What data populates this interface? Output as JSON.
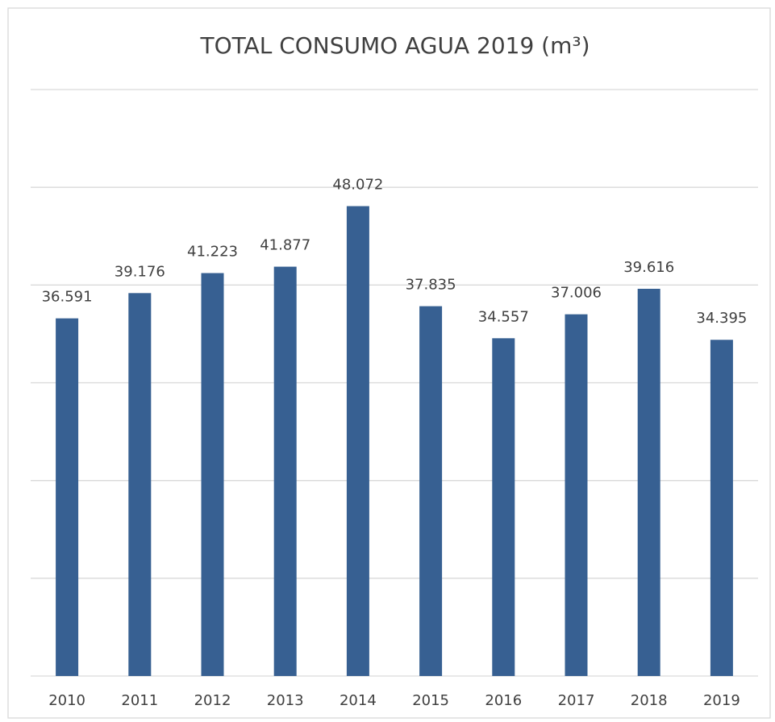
{
  "chart_data": {
    "type": "bar",
    "title": "TOTAL CONSUMO AGUA 2019 (m³)",
    "categories": [
      "2010",
      "2011",
      "2012",
      "2013",
      "2014",
      "2015",
      "2016",
      "2017",
      "2018",
      "2019"
    ],
    "values": [
      36591,
      39176,
      41223,
      41877,
      48072,
      37835,
      34557,
      37006,
      39616,
      34395
    ],
    "value_labels": [
      "36.591",
      "39.176",
      "41.223",
      "41.877",
      "48.072",
      "37.835",
      "34.557",
      "37.006",
      "39.616",
      "34.395"
    ],
    "color": "#376092",
    "ylim": [
      0,
      60000
    ],
    "yticks": [
      0,
      10000,
      20000,
      30000,
      40000,
      50000,
      60000
    ],
    "grid": true
  }
}
